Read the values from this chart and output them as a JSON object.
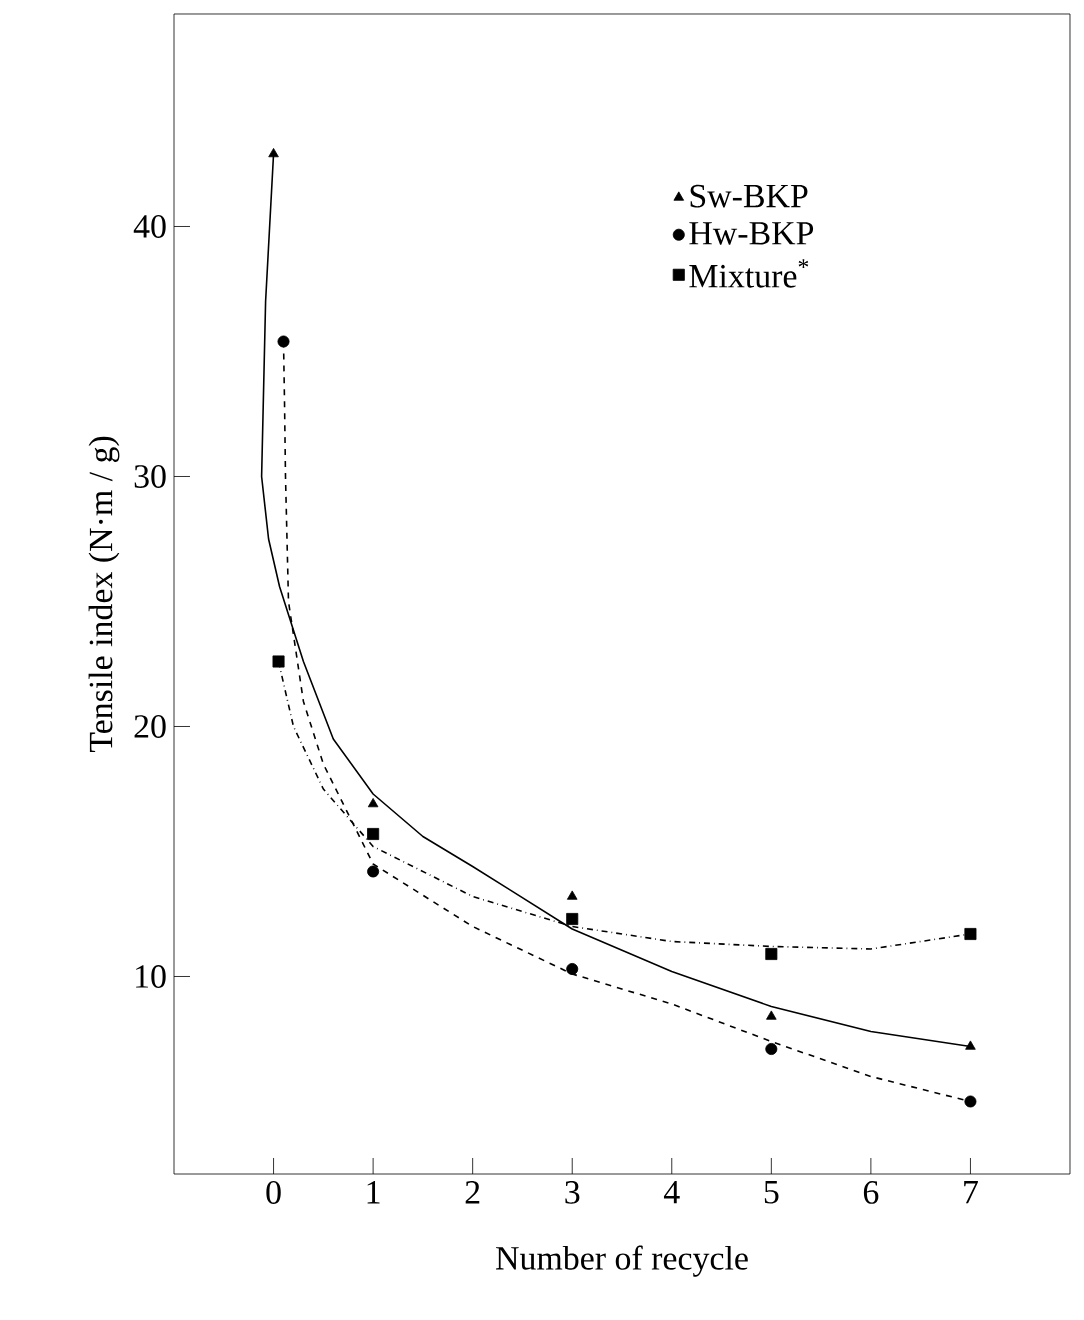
{
  "chart_data": {
    "type": "scatter",
    "xlabel": "Number of recycle",
    "ylabel": "Tensile index (N·m / g)",
    "xlim": [
      -1,
      8
    ],
    "ylim": [
      2.1,
      48.5
    ],
    "xticks": [
      0,
      1,
      2,
      3,
      4,
      5,
      6,
      7
    ],
    "yticks": [
      10,
      20,
      30,
      40
    ],
    "legend": "top right",
    "grid": false,
    "series": [
      {
        "name": "Sw-BKP",
        "marker": "triangle",
        "color": "#000000",
        "x": [
          0,
          1,
          3,
          5,
          7
        ],
        "values": [
          42.9,
          16.9,
          13.2,
          8.4,
          7.2
        ]
      },
      {
        "name": "Hw-BKP",
        "marker": "circle",
        "color": "#000000",
        "x": [
          0.1,
          1,
          3,
          5,
          7
        ],
        "values": [
          35.4,
          14.2,
          10.3,
          7.1,
          5.0
        ]
      },
      {
        "name": "Mixture$^{*}$",
        "marker": "square",
        "color": "#000000",
        "x": [
          0.05,
          1,
          3,
          5,
          7
        ],
        "values": [
          22.6,
          15.7,
          12.3,
          10.9,
          11.7
        ]
      },
      {
        "type": "line",
        "line_style": "solid",
        "marker": "none",
        "color": "#000000",
        "x": [
          0,
          -0.08,
          -0.12,
          -0.05,
          0.06,
          0.3,
          0.6,
          1,
          1.5,
          2,
          3,
          4,
          5,
          6,
          7
        ],
        "values": [
          42.9,
          37,
          30,
          27.5,
          25.6,
          22.6,
          19.5,
          17.3,
          15.6,
          14.4,
          11.9,
          10.2,
          8.8,
          7.8,
          7.2
        ]
      },
      {
        "type": "line",
        "line_style": "dashed",
        "marker": "none",
        "color": "#000000",
        "x": [
          0.1,
          0.11,
          0.12,
          0.15,
          0.3,
          0.5,
          1,
          2,
          3,
          4,
          5,
          6,
          7
        ],
        "values": [
          35.4,
          33,
          30,
          25,
          21,
          18.5,
          14.5,
          12,
          10.1,
          8.9,
          7.4,
          6,
          5
        ]
      },
      {
        "type": "line",
        "line_style": "dashdot",
        "marker": "none",
        "color": "#000000",
        "x": [
          0.05,
          0.2,
          0.5,
          1,
          2,
          3,
          4,
          5,
          6,
          7
        ],
        "values": [
          22.6,
          20,
          17.5,
          15.2,
          13.2,
          12.0,
          11.4,
          11.2,
          11.1,
          11.7
        ]
      }
    ]
  }
}
